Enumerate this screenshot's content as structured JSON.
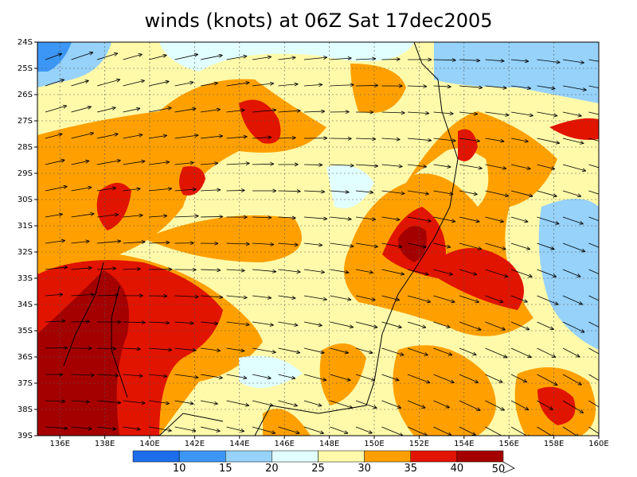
{
  "chart_data": {
    "type": "map",
    "title": "winds (knots) at 06Z Sat 17dec2005",
    "xlim": [
      135,
      160
    ],
    "ylim": [
      -39,
      -24
    ],
    "xticks": [
      {
        "value": 136,
        "label": "136E"
      },
      {
        "value": 138,
        "label": "138E"
      },
      {
        "value": 140,
        "label": "140E"
      },
      {
        "value": 142,
        "label": "142E"
      },
      {
        "value": 144,
        "label": "144E"
      },
      {
        "value": 146,
        "label": "146E"
      },
      {
        "value": 148,
        "label": "148E"
      },
      {
        "value": 150,
        "label": "150E"
      },
      {
        "value": 152,
        "label": "152E"
      },
      {
        "value": 154,
        "label": "154E"
      },
      {
        "value": 156,
        "label": "156E"
      },
      {
        "value": 158,
        "label": "158E"
      },
      {
        "value": 160,
        "label": "160E"
      }
    ],
    "yticks": [
      {
        "value": -24,
        "label": "24S"
      },
      {
        "value": -25,
        "label": "25S"
      },
      {
        "value": -26,
        "label": "26S"
      },
      {
        "value": -27,
        "label": "27S"
      },
      {
        "value": -28,
        "label": "28S"
      },
      {
        "value": -29,
        "label": "29S"
      },
      {
        "value": -30,
        "label": "30S"
      },
      {
        "value": -31,
        "label": "31S"
      },
      {
        "value": -32,
        "label": "32S"
      },
      {
        "value": -33,
        "label": "33S"
      },
      {
        "value": -34,
        "label": "34S"
      },
      {
        "value": -35,
        "label": "35S"
      },
      {
        "value": -36,
        "label": "36S"
      },
      {
        "value": -37,
        "label": "37S"
      },
      {
        "value": -38,
        "label": "38S"
      },
      {
        "value": -39,
        "label": "39S"
      }
    ],
    "grid": true,
    "colorbar": {
      "levels": [
        10,
        15,
        20,
        25,
        30,
        35,
        40
      ],
      "end_label": "50",
      "colors": [
        "#1e6eeb",
        "#3c96f5",
        "#96d2fa",
        "#e1ffff",
        "#fffaaa",
        "#ffa000",
        "#e11400",
        "#a50000"
      ]
    }
  }
}
